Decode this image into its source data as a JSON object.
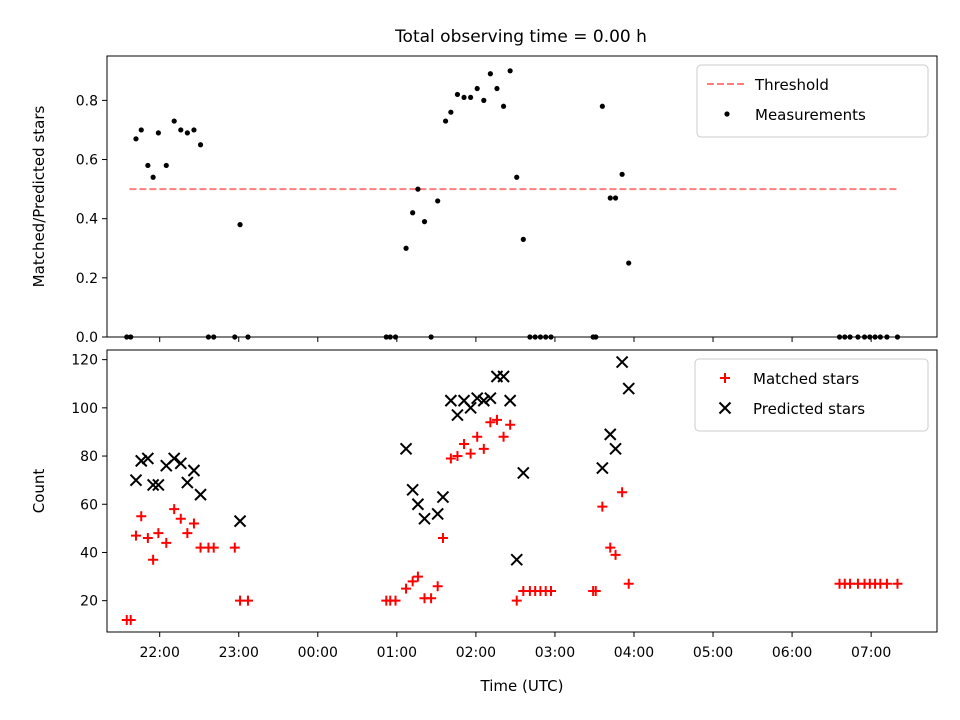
{
  "figure_title": "Total observing time = 0.00 h",
  "chart_data": [
    {
      "type": "scatter",
      "title": "Total observing time = 0.00 h",
      "xlabel": "",
      "ylabel": "Matched/Predicted stars",
      "xlim": [
        "21:20",
        "07:50"
      ],
      "ylim": [
        0,
        0.95
      ],
      "y_ticks": [
        0.0,
        0.2,
        0.4,
        0.6,
        0.8
      ],
      "y_tick_labels": [
        "0.0",
        "0.2",
        "0.4",
        "0.6",
        "0.8"
      ],
      "x_ticks": [
        "22:00",
        "23:00",
        "00:00",
        "01:00",
        "02:00",
        "03:00",
        "04:00",
        "05:00",
        "06:00",
        "07:00"
      ],
      "show_x_tick_labels": false,
      "legend_position": "top-right",
      "threshold": {
        "name": "Threshold",
        "value": 0.5,
        "x_start": "21:37",
        "x_end": "07:20",
        "color": "#ff7f7f",
        "style": "dashed"
      },
      "series": [
        {
          "name": "Measurements",
          "marker": "dot",
          "color": "#000000",
          "points": [
            [
              "21:35",
              0
            ],
            [
              "21:38",
              0
            ],
            [
              "21:42",
              0.67
            ],
            [
              "21:46",
              0.7
            ],
            [
              "21:51",
              0.58
            ],
            [
              "21:55",
              0.54
            ],
            [
              "21:59",
              0.69
            ],
            [
              "22:05",
              0.58
            ],
            [
              "22:11",
              0.73
            ],
            [
              "22:16",
              0.7
            ],
            [
              "22:21",
              0.69
            ],
            [
              "22:26",
              0.7
            ],
            [
              "22:31",
              0.65
            ],
            [
              "22:37",
              0
            ],
            [
              "22:41",
              0
            ],
            [
              "22:57",
              0
            ],
            [
              "23:01",
              0.38
            ],
            [
              "23:07",
              0
            ],
            [
              "00:52",
              0
            ],
            [
              "00:55",
              0
            ],
            [
              "00:59",
              0
            ],
            [
              "01:07",
              0.3
            ],
            [
              "01:12",
              0.42
            ],
            [
              "01:16",
              0.5
            ],
            [
              "01:21",
              0.39
            ],
            [
              "01:26",
              0
            ],
            [
              "01:31",
              0.46
            ],
            [
              "01:37",
              0.73
            ],
            [
              "01:41",
              0.76
            ],
            [
              "01:46",
              0.82
            ],
            [
              "01:51",
              0.81
            ],
            [
              "01:56",
              0.81
            ],
            [
              "02:01",
              0.84
            ],
            [
              "02:06",
              0.8
            ],
            [
              "02:11",
              0.89
            ],
            [
              "02:16",
              0.84
            ],
            [
              "02:21",
              0.78
            ],
            [
              "02:26",
              0.9
            ],
            [
              "02:31",
              0.54
            ],
            [
              "02:36",
              0.33
            ],
            [
              "02:41",
              0
            ],
            [
              "02:45",
              0
            ],
            [
              "02:49",
              0
            ],
            [
              "02:53",
              0
            ],
            [
              "02:57",
              0
            ],
            [
              "03:29",
              0
            ],
            [
              "03:31",
              0
            ],
            [
              "03:36",
              0.78
            ],
            [
              "03:42",
              0.47
            ],
            [
              "03:46",
              0.47
            ],
            [
              "03:51",
              0.55
            ],
            [
              "03:56",
              0.25
            ],
            [
              "06:36",
              0
            ],
            [
              "06:40",
              0
            ],
            [
              "06:44",
              0
            ],
            [
              "06:50",
              0
            ],
            [
              "06:55",
              0
            ],
            [
              "06:59",
              0
            ],
            [
              "07:03",
              0
            ],
            [
              "07:07",
              0
            ],
            [
              "07:12",
              0
            ],
            [
              "07:20",
              0
            ]
          ]
        }
      ]
    },
    {
      "type": "scatter",
      "title": "",
      "xlabel": "Time (UTC)",
      "ylabel": "Count",
      "xlim": [
        "21:20",
        "07:50"
      ],
      "ylim": [
        7,
        124
      ],
      "y_ticks": [
        20,
        40,
        60,
        80,
        100,
        120
      ],
      "y_tick_labels": [
        "20",
        "40",
        "60",
        "80",
        "100",
        "120"
      ],
      "x_ticks": [
        "22:00",
        "23:00",
        "00:00",
        "01:00",
        "02:00",
        "03:00",
        "04:00",
        "05:00",
        "06:00",
        "07:00"
      ],
      "x_tick_labels": [
        "22:00",
        "23:00",
        "00:00",
        "01:00",
        "02:00",
        "03:00",
        "04:00",
        "05:00",
        "06:00",
        "07:00"
      ],
      "show_x_tick_labels": true,
      "legend_position": "top-right",
      "series": [
        {
          "name": "Matched stars",
          "marker": "plus",
          "color": "#ff0000",
          "points": [
            [
              "21:35",
              12
            ],
            [
              "21:38",
              12
            ],
            [
              "21:42",
              47
            ],
            [
              "21:46",
              55
            ],
            [
              "21:51",
              46
            ],
            [
              "21:55",
              37
            ],
            [
              "21:59",
              48
            ],
            [
              "22:05",
              44
            ],
            [
              "22:11",
              58
            ],
            [
              "22:16",
              54
            ],
            [
              "22:21",
              48
            ],
            [
              "22:26",
              52
            ],
            [
              "22:31",
              42
            ],
            [
              "22:37",
              42
            ],
            [
              "22:41",
              42
            ],
            [
              "22:57",
              42
            ],
            [
              "23:01",
              20
            ],
            [
              "23:07",
              20
            ],
            [
              "00:52",
              20
            ],
            [
              "00:55",
              20
            ],
            [
              "00:59",
              20
            ],
            [
              "01:07",
              25
            ],
            [
              "01:12",
              28
            ],
            [
              "01:16",
              30
            ],
            [
              "01:21",
              21
            ],
            [
              "01:26",
              21
            ],
            [
              "01:31",
              26
            ],
            [
              "01:35",
              46
            ],
            [
              "01:41",
              79
            ],
            [
              "01:46",
              80
            ],
            [
              "01:51",
              85
            ],
            [
              "01:56",
              81
            ],
            [
              "02:01",
              88
            ],
            [
              "02:06",
              83
            ],
            [
              "02:11",
              94
            ],
            [
              "02:16",
              95
            ],
            [
              "02:21",
              88
            ],
            [
              "02:26",
              93
            ],
            [
              "02:31",
              20
            ],
            [
              "02:36",
              24
            ],
            [
              "02:41",
              24
            ],
            [
              "02:45",
              24
            ],
            [
              "02:49",
              24
            ],
            [
              "02:53",
              24
            ],
            [
              "02:57",
              24
            ],
            [
              "03:29",
              24
            ],
            [
              "03:31",
              24
            ],
            [
              "03:36",
              59
            ],
            [
              "03:42",
              42
            ],
            [
              "03:46",
              39
            ],
            [
              "03:51",
              65
            ],
            [
              "03:56",
              27
            ],
            [
              "06:36",
              27
            ],
            [
              "06:40",
              27
            ],
            [
              "06:44",
              27
            ],
            [
              "06:50",
              27
            ],
            [
              "06:55",
              27
            ],
            [
              "06:59",
              27
            ],
            [
              "07:03",
              27
            ],
            [
              "07:07",
              27
            ],
            [
              "07:12",
              27
            ],
            [
              "07:20",
              27
            ]
          ]
        },
        {
          "name": "Predicted stars",
          "marker": "x",
          "color": "#000000",
          "points": [
            [
              "21:42",
              70
            ],
            [
              "21:46",
              78
            ],
            [
              "21:51",
              79
            ],
            [
              "21:55",
              68
            ],
            [
              "21:59",
              68
            ],
            [
              "22:05",
              76
            ],
            [
              "22:11",
              79
            ],
            [
              "22:16",
              77
            ],
            [
              "22:21",
              69
            ],
            [
              "22:26",
              74
            ],
            [
              "22:31",
              64
            ],
            [
              "23:01",
              53
            ],
            [
              "01:07",
              83
            ],
            [
              "01:12",
              66
            ],
            [
              "01:16",
              60
            ],
            [
              "01:21",
              54
            ],
            [
              "01:31",
              56
            ],
            [
              "01:35",
              63
            ],
            [
              "01:41",
              103
            ],
            [
              "01:46",
              97
            ],
            [
              "01:51",
              103
            ],
            [
              "01:56",
              100
            ],
            [
              "02:01",
              104
            ],
            [
              "02:06",
              103
            ],
            [
              "02:11",
              104
            ],
            [
              "02:16",
              113
            ],
            [
              "02:21",
              113
            ],
            [
              "02:26",
              103
            ],
            [
              "02:31",
              37
            ],
            [
              "02:36",
              73
            ],
            [
              "03:36",
              75
            ],
            [
              "03:42",
              89
            ],
            [
              "03:46",
              83
            ],
            [
              "03:51",
              119
            ],
            [
              "03:56",
              108
            ]
          ]
        }
      ]
    }
  ]
}
